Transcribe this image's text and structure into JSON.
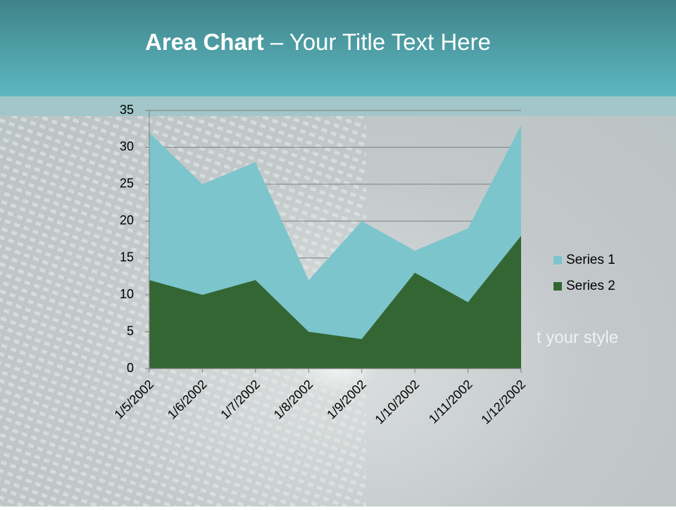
{
  "chart_data": {
    "type": "area",
    "title_bold": "Area Chart",
    "title": "– Your Title Text Here",
    "annotation": "t your style",
    "categories": [
      "1/5/2002",
      "1/6/2002",
      "1/7/2002",
      "1/8/2002",
      "1/9/2002",
      "1/10/2002",
      "1/11/2002",
      "1/12/2002"
    ],
    "series": [
      {
        "name": "Series 1",
        "color": "#7cc5cc",
        "values": [
          32,
          25,
          28,
          12,
          20,
          16,
          19,
          33
        ]
      },
      {
        "name": "Series 2",
        "color": "#336633",
        "values": [
          12,
          10,
          12,
          5,
          4,
          13,
          9,
          18
        ]
      }
    ],
    "ylim": [
      0,
      35
    ],
    "yticks": [
      0,
      5,
      10,
      15,
      20,
      25,
      30,
      35
    ],
    "grid": true,
    "legend": "right"
  }
}
